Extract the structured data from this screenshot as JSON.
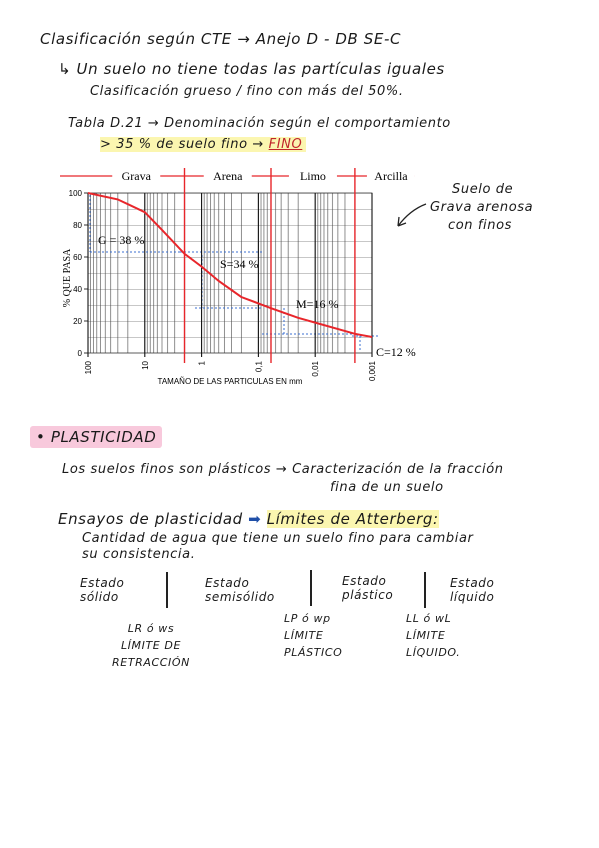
{
  "notes": {
    "heading": "Clasificación según CTE → Anejo D - DB SE-C",
    "line1": "↳ Un suelo no tiene todas las partículas iguales",
    "line2": "Clasificación grueso / fino con más del 50%.",
    "table_ref": "Tabla D.21 → Denominación según el comportamiento",
    "fine_rule": "> 35 % de suelo fino →",
    "fine_result": "FINO",
    "side_note": [
      "Suelo de",
      "Grava arenosa",
      "con finos"
    ],
    "section": "• PLASTICIDAD",
    "plastic1": "Los suelos finos son plásticos → Caracterización de la fracción",
    "plastic2": "fina de un suelo",
    "tests": "Ensayos de plasticidad",
    "limits": "Límites de Atterberg:",
    "def1": "Cantidad de agua que tiene un suelo fino para cambiar",
    "def2": "su consistencia.",
    "states": [
      [
        "Estado",
        "sólido"
      ],
      [
        "Estado",
        "semisólido"
      ],
      [
        "Estado",
        "plástico"
      ],
      [
        "Estado",
        "líquido"
      ]
    ],
    "limit_defs": [
      [
        "LR ó ws",
        "LÍMITE DE",
        "RETRACCIÓN"
      ],
      [
        "LP ó wp",
        "LÍMITE",
        "PLÁSTICO"
      ],
      [
        "LL ó wL",
        "LÍMITE",
        "LÍQUIDO."
      ]
    ]
  },
  "chart_data": {
    "type": "line",
    "color": "#e8262b",
    "xlog": true,
    "x": [
      100,
      30,
      10,
      5,
      2,
      1,
      0.5,
      0.2,
      0.1,
      0.06,
      0.02,
      0.01,
      0.002,
      0.001
    ],
    "values": [
      100,
      96,
      88,
      77,
      62,
      54,
      45,
      35,
      31,
      28,
      22,
      19,
      12,
      10
    ],
    "xlim": [
      100,
      0.001
    ],
    "ylim": [
      0,
      100
    ],
    "xticks": [
      100,
      10,
      1,
      {
        "value": 0.1,
        "label": "0,1"
      },
      {
        "value": 0.01,
        "label": "0,01"
      },
      {
        "value": 0.001,
        "label": "0,001"
      }
    ],
    "yticks": [
      0,
      20,
      40,
      60,
      80,
      100
    ],
    "xlabel": "TAMAÑO DE LAS PARTICULAS EN mm",
    "ylabel": "% QUE PASA",
    "zones": [
      "Grava",
      "Arena",
      "Limo",
      "Arcilla"
    ],
    "boundaries": [
      2,
      0.06,
      0.002
    ],
    "annotations": [
      "G = 38 %",
      "S=34 %",
      "M=16 %",
      "C=12 %"
    ]
  }
}
